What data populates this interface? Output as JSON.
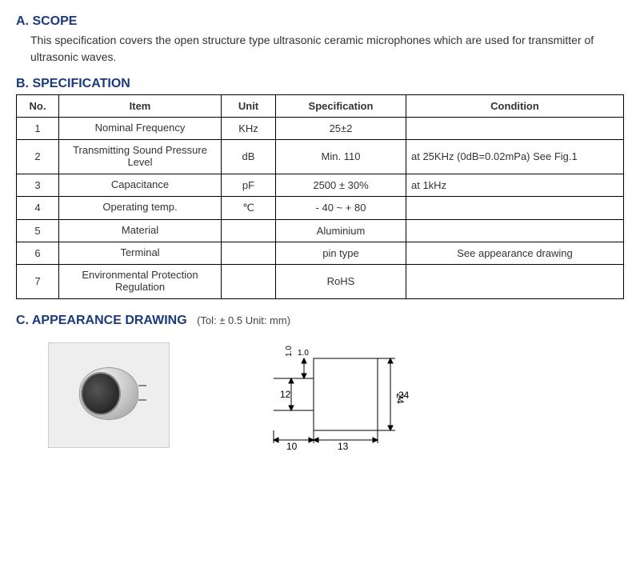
{
  "sectionA": {
    "heading": "A. SCOPE",
    "text": "This specification covers the open structure type ultrasonic ceramic microphones which are used for transmitter of ultrasonic waves."
  },
  "sectionB": {
    "heading": "B. SPECIFICATION",
    "columns": {
      "no": "No.",
      "item": "Item",
      "unit": "Unit",
      "spec": "Specification",
      "cond": "Condition"
    },
    "rows": [
      {
        "no": "1",
        "item": "Nominal Frequency",
        "unit": "KHz",
        "spec": "25±2",
        "cond": "",
        "cond_center": false
      },
      {
        "no": "2",
        "item": "Transmitting Sound Pressure Level",
        "unit": "dB",
        "spec": "Min. 110",
        "cond": "at 25KHz (0dB=0.02mPa) See Fig.1",
        "cond_center": false
      },
      {
        "no": "3",
        "item": "Capacitance",
        "unit": "pF",
        "spec": "2500 ± 30%",
        "cond": "at 1kHz",
        "cond_center": false
      },
      {
        "no": "4",
        "item": "Operating temp.",
        "unit": "℃",
        "spec": "- 40 ~ + 80",
        "cond": "",
        "cond_center": false
      },
      {
        "no": "5",
        "item": "Material",
        "unit": "",
        "spec": "Aluminium",
        "cond": "",
        "cond_center": false
      },
      {
        "no": "6",
        "item": "Terminal",
        "unit": "",
        "spec": "pin type",
        "cond": "See appearance drawing",
        "cond_center": true
      },
      {
        "no": "7",
        "item": "Environmental Protection Regulation",
        "unit": "",
        "spec": "RoHS",
        "cond": "",
        "cond_center": false
      }
    ]
  },
  "sectionC": {
    "heading": "C. APPEARANCE DRAWING",
    "sub": "(Tol: ± 0.5   Unit: mm)",
    "dims": {
      "pin_spacing": "12",
      "pin_inset": "1.0",
      "pin_length": "10",
      "body_length": "13",
      "body_diameter": "24"
    }
  }
}
